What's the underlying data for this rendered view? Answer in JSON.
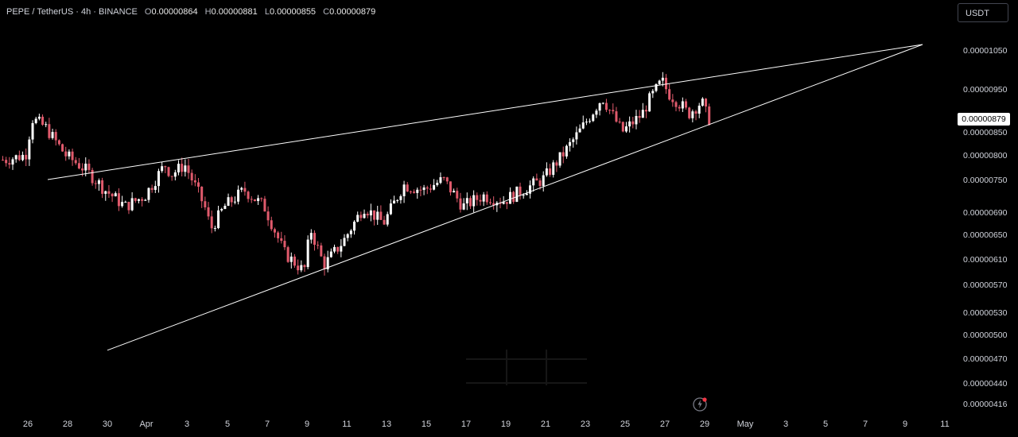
{
  "header": {
    "symbol": "PEPE / TetherUS · 4h · BINANCE",
    "ohlc": [
      {
        "k": "O",
        "v": "0.00000864"
      },
      {
        "k": "H",
        "v": "0.00000881"
      },
      {
        "k": "L",
        "v": "0.00000855"
      },
      {
        "k": "C",
        "v": "0.00000879"
      }
    ]
  },
  "currency_button": "USDT",
  "last_price": "0.00000879",
  "colors": {
    "up": "#ffffff",
    "down": "#e05a6c",
    "background": "#000000",
    "line": "#ffffff"
  },
  "chart_data": {
    "type": "candlestick",
    "price_labels": [
      "0.00001050",
      "0.00000950",
      "0.00000850",
      "0.00000800",
      "0.00000750",
      "0.00000690",
      "0.00000650",
      "0.00000610",
      "0.00000570",
      "0.00000530",
      "0.00000500",
      "0.00000470",
      "0.00000440",
      "0.00000416"
    ],
    "x_labels": [
      "26",
      "28",
      "30",
      "Apr",
      "3",
      "5",
      "7",
      "9",
      "11",
      "13",
      "15",
      "17",
      "19",
      "21",
      "23",
      "25",
      "27",
      "29",
      "May",
      "3",
      "5",
      "7",
      "9",
      "11"
    ],
    "price_path": [
      [
        "Mar 25",
        7.9e-06
      ],
      [
        "Mar 26",
        8e-06
      ],
      [
        "Mar 26",
        8.8e-06
      ],
      [
        "Mar 27",
        8.6e-06
      ],
      [
        "Mar 28",
        8e-06
      ],
      [
        "Mar 29",
        7.7e-06
      ],
      [
        "Mar 30",
        7.3e-06
      ],
      [
        "Mar 31",
        7e-06
      ],
      [
        "Apr 1",
        7.2e-06
      ],
      [
        "Apr 2",
        7.8e-06
      ],
      [
        "Apr 2",
        7.6e-06
      ],
      [
        "Apr 3",
        7.8e-06
      ],
      [
        "Apr 4",
        7e-06
      ],
      [
        "Apr 4",
        6.6e-06
      ],
      [
        "Apr 5",
        7e-06
      ],
      [
        "Apr 6",
        7.3e-06
      ],
      [
        "Apr 7",
        7e-06
      ],
      [
        "Apr 8",
        6.2e-06
      ],
      [
        "Apr 9",
        5.9e-06
      ],
      [
        "Apr 9",
        6.6e-06
      ],
      [
        "Apr 10",
        6e-06
      ],
      [
        "Apr 11",
        6.4e-06
      ],
      [
        "Apr 12",
        7e-06
      ],
      [
        "Apr 13",
        6.7e-06
      ],
      [
        "Apr 14",
        7.4e-06
      ],
      [
        "Apr 15",
        7.3e-06
      ],
      [
        "Apr 16",
        7.5e-06
      ],
      [
        "Apr 17",
        7e-06
      ],
      [
        "Apr 18",
        7.2e-06
      ],
      [
        "Apr 19",
        7.1e-06
      ],
      [
        "Apr 20",
        7.3e-06
      ],
      [
        "Apr 21",
        7.5e-06
      ],
      [
        "Apr 22",
        8e-06
      ],
      [
        "Apr 23",
        8.6e-06
      ],
      [
        "Apr 24",
        9.3e-06
      ],
      [
        "Apr 25",
        8.5e-06
      ],
      [
        "Apr 26",
        8.9e-06
      ],
      [
        "Apr 26",
        9.2e-06
      ],
      [
        "Apr 27",
        9.7e-06
      ],
      [
        "Apr 27",
        9.4e-06
      ],
      [
        "Apr 28",
        9.1e-06
      ],
      [
        "Apr 28",
        8.9e-06
      ],
      [
        "Apr 29",
        9.2e-06
      ],
      [
        "Apr 29",
        8.79e-06
      ]
    ],
    "trendlines": [
      {
        "name": "upper",
        "from": [
          "Mar 27",
          7.5e-06
        ],
        "to": [
          "May 10",
          1.065e-05
        ]
      },
      {
        "name": "lower",
        "from": [
          "Mar 30",
          4.8e-06
        ],
        "to": [
          "May 10",
          1.065e-05
        ]
      }
    ]
  }
}
